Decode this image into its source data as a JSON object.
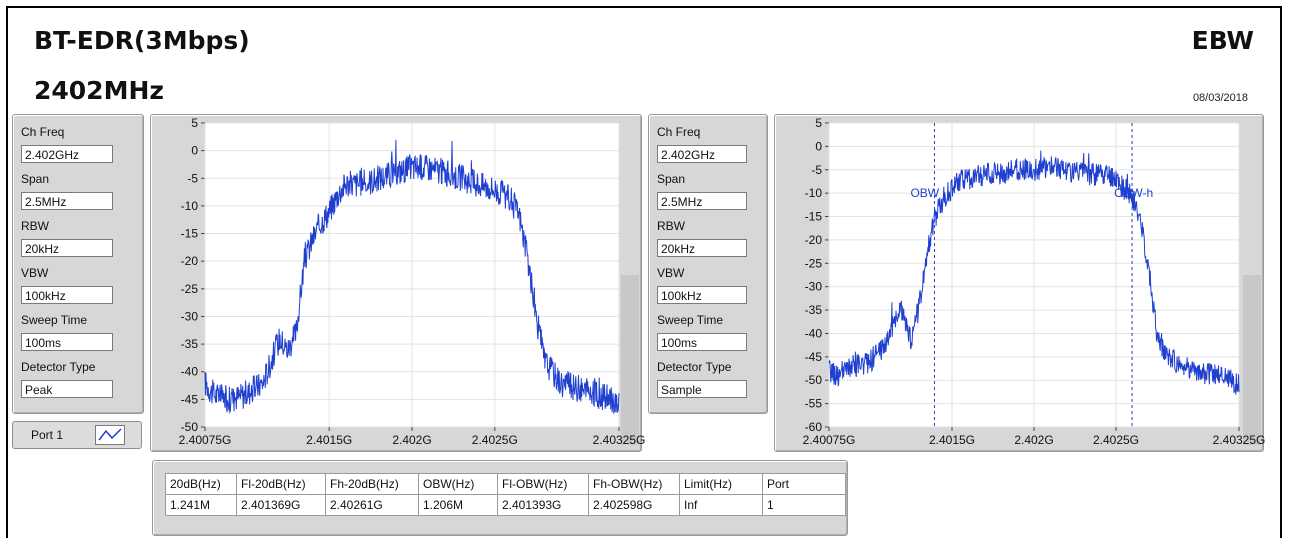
{
  "header": {
    "title": "BT-EDR(3Mbps)",
    "freq": "2402MHz",
    "test": "EBW",
    "date": "08/03/2018"
  },
  "panel1": {
    "ch_freq_label": "Ch Freq",
    "ch_freq": "2.402GHz",
    "span_label": "Span",
    "span": "2.5MHz",
    "rbw_label": "RBW",
    "rbw": "20kHz",
    "vbw_label": "VBW",
    "vbw": "100kHz",
    "sweep_label": "Sweep Time",
    "sweep": "100ms",
    "det_label": "Detector Type",
    "det": "Peak"
  },
  "panel2": {
    "ch_freq_label": "Ch Freq",
    "ch_freq": "2.402GHz",
    "span_label": "Span",
    "span": "2.5MHz",
    "rbw_label": "RBW",
    "rbw": "20kHz",
    "vbw_label": "VBW",
    "vbw": "100kHz",
    "sweep_label": "Sweep Time",
    "sweep": "100ms",
    "det_label": "Detector Type",
    "det": "Sample"
  },
  "port": {
    "label": "Port 1",
    "icon": "trace-icon"
  },
  "results": {
    "headers": [
      "20dB(Hz)",
      "Fl-20dB(Hz)",
      "Fh-20dB(Hz)",
      "OBW(Hz)",
      "Fl-OBW(Hz)",
      "Fh-OBW(Hz)",
      "Limit(Hz)",
      "Port"
    ],
    "row": [
      "1.241M",
      "2.401369G",
      "2.40261G",
      "1.206M",
      "2.401393G",
      "2.402598G",
      "Inf",
      "1"
    ]
  },
  "colors": {
    "trace": "#1f3fd0",
    "panel": "#d7d7d7",
    "marker": "#1f3fd0"
  },
  "chart_data": [
    {
      "type": "line",
      "xlim": [
        2.40075,
        2.40325
      ],
      "ylim": [
        -50,
        5
      ],
      "x_ticks": [
        "2.40075G",
        "2.4015G",
        "2.402G",
        "2.4025G",
        "2.40325G"
      ],
      "x_tick_values": [
        2.40075,
        2.4015,
        2.402,
        2.4025,
        2.40325
      ],
      "y_ticks": [
        5,
        0,
        -5,
        -10,
        -15,
        -20,
        -25,
        -30,
        -35,
        -40,
        -45,
        -50
      ],
      "grid": true,
      "series": [
        {
          "x": [
            2.40075,
            2.4008,
            2.4009,
            2.401,
            2.4011,
            2.40115,
            2.4012,
            2.40125,
            2.4013,
            2.40135,
            2.4014,
            2.40145,
            2.4015,
            2.40155,
            2.4016,
            2.4017,
            2.4018,
            2.4019,
            2.402,
            2.4021,
            2.4022,
            2.4023,
            2.4024,
            2.4025,
            2.40255,
            2.4026,
            2.40265,
            2.4027,
            2.40275,
            2.4028,
            2.40285,
            2.4029,
            2.403,
            2.4031,
            2.4032,
            2.40325
          ],
          "y": [
            -42,
            -44,
            -45,
            -44,
            -42,
            -38,
            -34,
            -36,
            -33,
            -20,
            -16,
            -13,
            -11,
            -8,
            -6,
            -6,
            -5,
            -4,
            -3,
            -3,
            -4,
            -5,
            -6,
            -7,
            -8,
            -9,
            -12,
            -20,
            -30,
            -38,
            -40,
            -42,
            -43,
            -44,
            -45,
            -46
          ]
        }
      ]
    },
    {
      "type": "line",
      "xlim": [
        2.40075,
        2.40325
      ],
      "ylim": [
        -60,
        5
      ],
      "x_ticks": [
        "2.40075G",
        "2.4015G",
        "2.402G",
        "2.4025G",
        "2.40325G"
      ],
      "x_tick_values": [
        2.40075,
        2.4015,
        2.402,
        2.4025,
        2.40325
      ],
      "y_ticks": [
        5,
        0,
        -5,
        -10,
        -15,
        -20,
        -25,
        -30,
        -35,
        -40,
        -45,
        -50,
        -55,
        -60
      ],
      "grid": true,
      "markers": [
        {
          "label": "OBW",
          "x": 2.401393
        },
        {
          "label": "OBW-h",
          "x": 2.402598
        }
      ],
      "series": [
        {
          "x": [
            2.40075,
            2.4008,
            2.4009,
            2.401,
            2.4011,
            2.40115,
            2.4012,
            2.40125,
            2.4013,
            2.40135,
            2.4014,
            2.40145,
            2.4015,
            2.40155,
            2.4016,
            2.4017,
            2.4018,
            2.4019,
            2.402,
            2.4021,
            2.4022,
            2.4023,
            2.4024,
            2.4025,
            2.40255,
            2.4026,
            2.40265,
            2.4027,
            2.40275,
            2.4028,
            2.40285,
            2.4029,
            2.403,
            2.4031,
            2.4032,
            2.40325
          ],
          "y": [
            -48,
            -49,
            -47,
            -46,
            -42,
            -37,
            -35,
            -42,
            -34,
            -22,
            -15,
            -11,
            -9,
            -7,
            -7,
            -6,
            -6,
            -5,
            -5,
            -4,
            -5,
            -6,
            -6,
            -7,
            -9,
            -11,
            -16,
            -26,
            -40,
            -44,
            -46,
            -47,
            -48,
            -49,
            -50,
            -51
          ]
        }
      ]
    }
  ]
}
